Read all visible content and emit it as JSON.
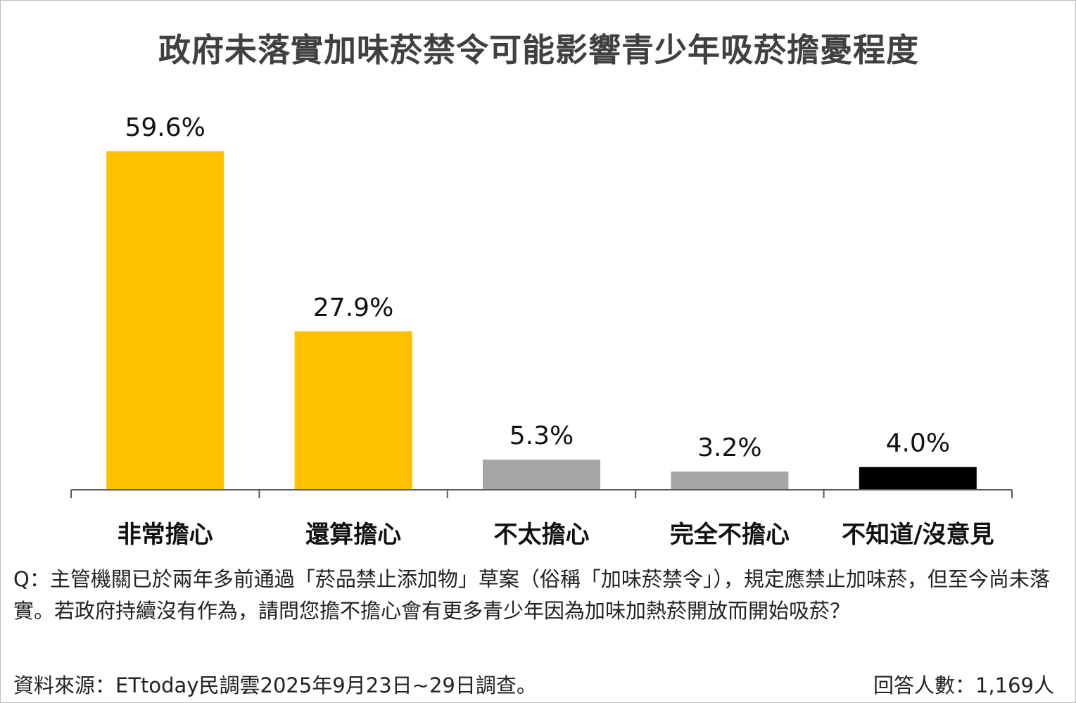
{
  "chart_data": {
    "type": "bar",
    "title": "政府未落實加味菸禁令可能影響青少年吸菸擔憂程度",
    "categories": [
      "非常擔心",
      "還算擔心",
      "不太擔心",
      "完全不擔心",
      "不知道/沒意見"
    ],
    "values": [
      59.6,
      27.9,
      5.3,
      3.2,
      4.0
    ],
    "data_labels": [
      "59.6%",
      "27.9%",
      "5.3%",
      "3.2%",
      "4.0%"
    ],
    "colors": [
      "#FFC000",
      "#FFC000",
      "#A6A6A6",
      "#A6A6A6",
      "#000000"
    ],
    "unit": "%",
    "ylim": [
      0,
      60
    ],
    "grid": false,
    "xlabel": "",
    "ylabel": ""
  },
  "footer": {
    "question": "Q：主管機關已於兩年多前通過「菸品禁止添加物」草案（俗稱「加味菸禁令」），規定應禁止加味菸，但至今尚未落實。若政府持續沒有作為，請問您擔不擔心會有更多青少年因為加味加熱菸開放而開始吸菸？",
    "source": "資料來源：ETtoday民調雲2025年9月23日~29日調查。",
    "respondents": "回答人數：1,169人"
  }
}
